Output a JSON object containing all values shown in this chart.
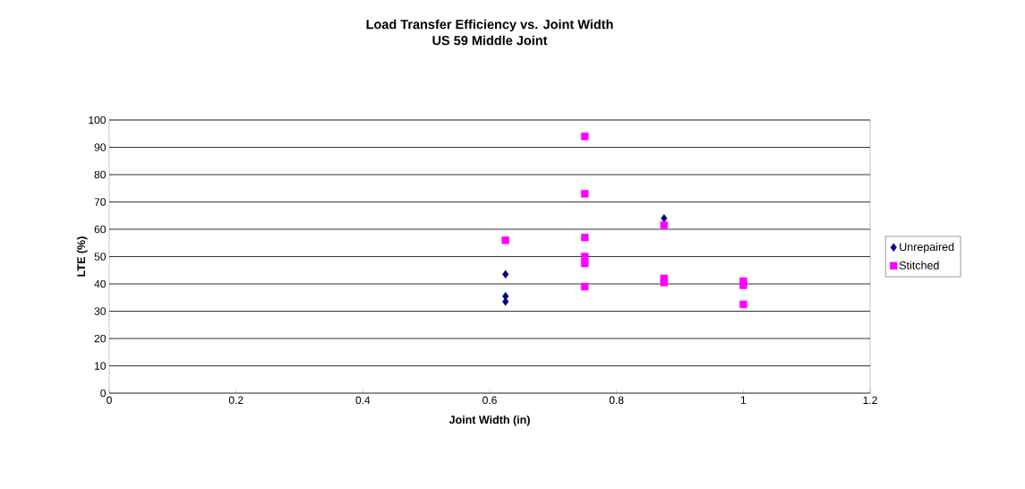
{
  "chart_data": {
    "type": "scatter",
    "title": "Load Transfer Efficiency vs. Joint Width",
    "subtitle": "US 59 Middle Joint",
    "xlabel": "Joint Width (in)",
    "ylabel": "LTE (%)",
    "xlim": [
      0,
      1.2
    ],
    "xticks": [
      0,
      0.2,
      0.4,
      0.6,
      0.8,
      1,
      1.2
    ],
    "ylim": [
      0,
      100
    ],
    "yticks": [
      0,
      10,
      20,
      30,
      40,
      50,
      60,
      70,
      80,
      90,
      100
    ],
    "grid": "y",
    "legend": "right",
    "series": [
      {
        "name": "Unrepaired",
        "color": "#000080",
        "marker": "diamond",
        "x": [
          0.625,
          0.625,
          0.625,
          0.875
        ],
        "values": [
          43.5,
          35.5,
          33.5,
          64
        ]
      },
      {
        "name": "Stitched",
        "color": "#ff00ff",
        "marker": "square",
        "x": [
          0.625,
          0.75,
          0.75,
          0.75,
          0.75,
          0.75,
          0.75,
          0.875,
          0.875,
          0.875,
          1,
          1,
          1
        ],
        "values": [
          56,
          94,
          73,
          57,
          50,
          47.5,
          39,
          61.5,
          42,
          40.5,
          41,
          39.5,
          32.5
        ]
      }
    ]
  }
}
